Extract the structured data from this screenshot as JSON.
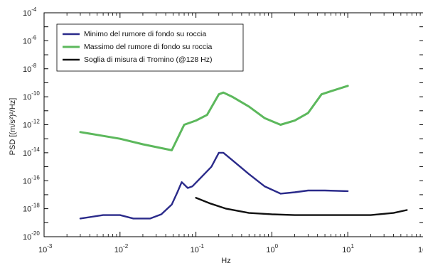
{
  "chart_data": {
    "type": "line",
    "xscale": "log",
    "yscale": "log",
    "xlim": [
      0.001,
      100
    ],
    "ylim": [
      1e-20,
      0.0001
    ],
    "xlabel": "Hz",
    "ylabel": "PSD [(m/s²)²/Hz]",
    "grid": false,
    "legend_position": "top-left",
    "x_ticks": [
      {
        "base": "10",
        "exp": "-3",
        "value": 0.001
      },
      {
        "base": "10",
        "exp": "-2",
        "value": 0.01
      },
      {
        "base": "10",
        "exp": "-1",
        "value": 0.1
      },
      {
        "base": "10",
        "exp": "0",
        "value": 1
      },
      {
        "base": "10",
        "exp": "1",
        "value": 10
      },
      {
        "base": "10",
        "exp": "2",
        "value": 100
      }
    ],
    "y_ticks": [
      {
        "base": "10",
        "exp": "-4",
        "value": 0.0001
      },
      {
        "base": "10",
        "exp": "-6",
        "value": 1e-06
      },
      {
        "base": "10",
        "exp": "-8",
        "value": 1e-08
      },
      {
        "base": "10",
        "exp": "-10",
        "value": 1e-10
      },
      {
        "base": "10",
        "exp": "-12",
        "value": 1e-12
      },
      {
        "base": "10",
        "exp": "-14",
        "value": 1e-14
      },
      {
        "base": "10",
        "exp": "-16",
        "value": 1e-16
      },
      {
        "base": "10",
        "exp": "-18",
        "value": 1e-18
      },
      {
        "base": "10",
        "exp": "-20",
        "value": 1e-20
      }
    ],
    "series": [
      {
        "name": "Minimo del rumore di fondo su roccia",
        "color": "#2a2a8a",
        "points": [
          [
            0.003,
            2e-19
          ],
          [
            0.006,
            3.5e-19
          ],
          [
            0.01,
            3.5e-19
          ],
          [
            0.015,
            2e-19
          ],
          [
            0.025,
            2e-19
          ],
          [
            0.035,
            4e-19
          ],
          [
            0.048,
            2e-18
          ],
          [
            0.057,
            1.5e-17
          ],
          [
            0.065,
            8e-17
          ],
          [
            0.078,
            3e-17
          ],
          [
            0.09,
            4e-17
          ],
          [
            0.12,
            2e-16
          ],
          [
            0.16,
            1e-15
          ],
          [
            0.2,
            1e-14
          ],
          [
            0.23,
            1e-14
          ],
          [
            0.3,
            3e-15
          ],
          [
            0.5,
            3e-16
          ],
          [
            0.8,
            4e-17
          ],
          [
            1.3,
            1.2e-17
          ],
          [
            2,
            1.5e-17
          ],
          [
            3,
            2e-17
          ],
          [
            5,
            2e-17
          ],
          [
            10,
            1.8e-17
          ]
        ]
      },
      {
        "name": "Massimo del rumore di fondo su roccia",
        "color": "#5cb85c",
        "points": [
          [
            0.003,
            3e-13
          ],
          [
            0.01,
            1e-13
          ],
          [
            0.02,
            4e-14
          ],
          [
            0.048,
            1.5e-14
          ],
          [
            0.07,
            1e-12
          ],
          [
            0.1,
            2e-12
          ],
          [
            0.14,
            5e-12
          ],
          [
            0.2,
            1.5e-10
          ],
          [
            0.23,
            2e-10
          ],
          [
            0.3,
            1e-10
          ],
          [
            0.5,
            2e-11
          ],
          [
            0.8,
            3e-12
          ],
          [
            1.3,
            1e-12
          ],
          [
            2,
            2e-12
          ],
          [
            3,
            7e-12
          ],
          [
            4.5,
            1.5e-10
          ],
          [
            6,
            2.5e-10
          ],
          [
            10,
            6e-10
          ]
        ]
      },
      {
        "name": "Soglia di misura di Tromino (@128 Hz)",
        "color": "#111111",
        "points": [
          [
            0.1,
            6e-18
          ],
          [
            0.15,
            2.5e-18
          ],
          [
            0.25,
            1e-18
          ],
          [
            0.5,
            5e-19
          ],
          [
            1,
            4e-19
          ],
          [
            2,
            3.5e-19
          ],
          [
            5,
            3.5e-19
          ],
          [
            10,
            3.5e-19
          ],
          [
            20,
            3.5e-19
          ],
          [
            40,
            5e-19
          ],
          [
            60,
            8e-19
          ]
        ]
      }
    ]
  }
}
